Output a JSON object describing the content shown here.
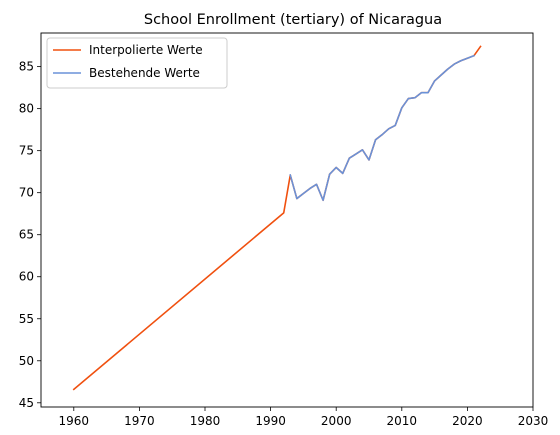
{
  "chart_data": {
    "type": "line",
    "title": "School Enrollment (tertiary) of Nicaragua",
    "xlabel": "",
    "ylabel": "",
    "xlim": [
      1955,
      2030
    ],
    "ylim": [
      44.5,
      89
    ],
    "xticks": [
      1960,
      1970,
      1980,
      1990,
      2000,
      2010,
      2020,
      2030
    ],
    "yticks": [
      45,
      50,
      55,
      60,
      65,
      70,
      75,
      80,
      85
    ],
    "grid": false,
    "legend_position": "top-left",
    "series": [
      {
        "name": "Interpolierte Werte",
        "color": "#f0500f",
        "x": [
          1960,
          1992,
          1993,
          1994,
          1995,
          1996,
          1997,
          1998,
          1999,
          2000,
          2001,
          2002,
          2003,
          2004,
          2005,
          2006,
          2007,
          2008,
          2009,
          2010,
          2011,
          2012,
          2013,
          2014,
          2015,
          2016,
          2017,
          2018,
          2019,
          2020,
          2021,
          2022
        ],
        "y": [
          46.6,
          67.6,
          72.1,
          69.3,
          69.9,
          70.5,
          71.0,
          69.1,
          72.2,
          73.0,
          72.3,
          74.1,
          74.6,
          75.1,
          73.9,
          76.3,
          76.9,
          77.6,
          78.0,
          80.1,
          81.2,
          81.3,
          81.9,
          81.9,
          83.3,
          84.0,
          84.7,
          85.3,
          85.7,
          86.0,
          86.3,
          87.4
        ]
      },
      {
        "name": "Bestehende Werte",
        "color": "#6a92d8",
        "x": [
          1993,
          1994,
          1995,
          1996,
          1997,
          1998,
          1999,
          2000,
          2001,
          2002,
          2003,
          2004,
          2005,
          2006,
          2007,
          2008,
          2009,
          2010,
          2011,
          2012,
          2013,
          2014,
          2015,
          2016,
          2017,
          2018,
          2019,
          2020,
          2021
        ],
        "y": [
          72.1,
          69.3,
          69.9,
          70.5,
          71.0,
          69.1,
          72.2,
          73.0,
          72.3,
          74.1,
          74.6,
          75.1,
          73.9,
          76.3,
          76.9,
          77.6,
          78.0,
          80.1,
          81.2,
          81.3,
          81.9,
          81.9,
          83.3,
          84.0,
          84.7,
          85.3,
          85.7,
          86.0,
          86.3
        ]
      }
    ]
  }
}
